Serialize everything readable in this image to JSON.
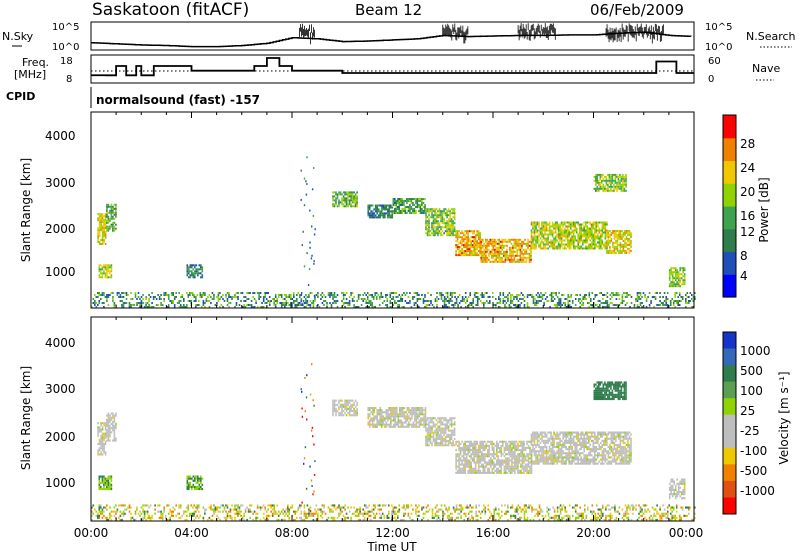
{
  "header": {
    "station": "Saskatoon (fitACF)",
    "beam": "Beam 12",
    "date": "06/Feb/2009"
  },
  "noise_panel": {
    "left_label": "N.Sky",
    "right_label": "N.Search",
    "left_ticks": [
      "10^5",
      "10^0"
    ],
    "right_ticks": [
      "10^5",
      "10^0"
    ]
  },
  "freq_panel": {
    "left_label_1": "Freq.",
    "left_label_2": "[MHz]",
    "right_label": "Nave",
    "left_ticks": [
      "18",
      "8"
    ],
    "right_ticks": [
      "60",
      "0"
    ]
  },
  "cpid": {
    "label": "CPID",
    "value": "normalsound (fast) -157"
  },
  "power_panel": {
    "ylabel": "Slant Range [km]",
    "yticks": [
      "4000",
      "3000",
      "2000",
      "1000"
    ],
    "colorbar_label": "Power [dB]",
    "colorbar_ticks": [
      "28",
      "24",
      "20",
      "16",
      "12",
      "8",
      "4"
    ]
  },
  "velocity_panel": {
    "ylabel": "Slant Range [km]",
    "yticks": [
      "4000",
      "3000",
      "2000",
      "1000"
    ],
    "colorbar_label": "Velocity [m s⁻¹]",
    "colorbar_ticks": [
      "1000",
      "500",
      "100",
      "25",
      "-25",
      "-100",
      "-500",
      "-1000"
    ]
  },
  "xaxis": {
    "label": "Time UT",
    "ticks": [
      "00:00",
      "04:00",
      "08:00",
      "12:00",
      "16:00",
      "20:00",
      "00:00"
    ]
  },
  "colors": {
    "power_scale": [
      "#0000ff",
      "#1f4fb8",
      "#2e7d4b",
      "#3fa34d",
      "#8fd400",
      "#f0c800",
      "#f08000",
      "#ff0000"
    ],
    "velocity_scale": [
      "#1533c8",
      "#3468b8",
      "#2e7d4b",
      "#5aa050",
      "#8fd400",
      "#bebebe",
      "#bebebe",
      "#f0c800",
      "#f08000",
      "#e05010",
      "#ff0000"
    ],
    "ground_scatter": "#bebebe"
  },
  "chart_data": [
    {
      "type": "line",
      "title": "Saskatoon (fitACF)  Beam 12  06/Feb/2009",
      "series": [
        {
          "name": "N.Sky",
          "x_hours": [
            0,
            1,
            2,
            3,
            4,
            5,
            6,
            7,
            8,
            9,
            10,
            11,
            12,
            13,
            14,
            15,
            16,
            17,
            18,
            19,
            20,
            21,
            22,
            23,
            24
          ],
          "values_log10": [
            1.3,
            1.1,
            0.9,
            0.8,
            0.6,
            0.6,
            0.8,
            1.2,
            2.2,
            2.0,
            1.5,
            1.6,
            1.8,
            2.0,
            2.6,
            2.4,
            2.5,
            2.6,
            2.6,
            2.7,
            2.7,
            3.0,
            3.2,
            2.6,
            2.4
          ]
        }
      ],
      "xlim": [
        0,
        24
      ],
      "ylim": [
        0,
        5
      ]
    },
    {
      "type": "line",
      "series": [
        {
          "name": "Freq. [MHz]",
          "x_hours": [
            0,
            0.6,
            1.0,
            1.4,
            1.8,
            2.0,
            2.5,
            3.0,
            4.0,
            5.0,
            6.0,
            6.5,
            7.0,
            7.5,
            8.0,
            10.0,
            12.0,
            14.0,
            16.0,
            18.0,
            20.0,
            22.0,
            22.5,
            23.3,
            24.0
          ],
          "values": [
            10.5,
            10.5,
            14.5,
            10.5,
            14.5,
            10.5,
            14.5,
            14.5,
            12.5,
            12.5,
            12.5,
            14.5,
            18,
            14.5,
            12.5,
            11.5,
            11.5,
            11.5,
            11.5,
            11.5,
            11.5,
            11.5,
            16.5,
            11.5,
            11.5
          ]
        },
        {
          "name": "Nave",
          "values": [
            30
          ]
        }
      ],
      "ylim": [
        8,
        18
      ],
      "ylim_right": [
        0,
        60
      ]
    },
    {
      "type": "heatmap",
      "title": "Power [dB]",
      "xlabel": "Time UT",
      "ylabel": "Slant Range [km]",
      "xlim": [
        0,
        24
      ],
      "ylim": [
        180,
        4600
      ],
      "zlim": [
        0,
        30
      ],
      "bands": [
        {
          "t0": 0.25,
          "t1": 0.6,
          "r0": 1600,
          "r1": 2300,
          "power": 20
        },
        {
          "t0": 0.6,
          "t1": 1.0,
          "r0": 1900,
          "r1": 2500,
          "power": 14
        },
        {
          "t0": 0.3,
          "t1": 0.8,
          "r0": 850,
          "r1": 1150,
          "power": 18
        },
        {
          "t0": 3.8,
          "t1": 4.4,
          "r0": 850,
          "r1": 1150,
          "power": 10
        },
        {
          "t0": 9.6,
          "t1": 10.6,
          "r0": 2450,
          "r1": 2800,
          "power": 14
        },
        {
          "t0": 11.0,
          "t1": 12.0,
          "r0": 2200,
          "r1": 2500,
          "power": 10
        },
        {
          "t0": 12.0,
          "t1": 13.3,
          "r0": 2300,
          "r1": 2650,
          "power": 12
        },
        {
          "t0": 13.3,
          "t1": 14.5,
          "r0": 1800,
          "r1": 2400,
          "power": 16
        },
        {
          "t0": 14.5,
          "t1": 15.5,
          "r0": 1350,
          "r1": 1900,
          "power": 22
        },
        {
          "t0": 15.5,
          "t1": 17.5,
          "r0": 1200,
          "r1": 1700,
          "power": 22
        },
        {
          "t0": 17.5,
          "t1": 20.5,
          "r0": 1500,
          "r1": 2100,
          "power": 18
        },
        {
          "t0": 20.5,
          "t1": 21.5,
          "r0": 1400,
          "r1": 1900,
          "power": 20
        },
        {
          "t0": 20.0,
          "t1": 21.3,
          "r0": 2800,
          "r1": 3200,
          "power": 16
        },
        {
          "t0": 23.0,
          "t1": 23.6,
          "r0": 650,
          "r1": 1100,
          "power": 16
        },
        {
          "t0": 0.0,
          "t1": 24.0,
          "r0": 180,
          "r1": 500,
          "power": 8
        }
      ]
    },
    {
      "type": "heatmap",
      "title": "Velocity [m s⁻¹]",
      "xlabel": "Time UT",
      "ylabel": "Slant Range [km]",
      "xlim": [
        0,
        24
      ],
      "ylim": [
        180,
        4600
      ],
      "zlim": [
        -1000,
        1000
      ],
      "bands": [
        {
          "t0": 0.25,
          "t1": 0.6,
          "r0": 1600,
          "r1": 2300,
          "velocity": 0
        },
        {
          "t0": 0.6,
          "t1": 1.0,
          "r0": 1900,
          "r1": 2500,
          "velocity": 0
        },
        {
          "t0": 0.3,
          "t1": 0.8,
          "r0": 850,
          "r1": 1150,
          "velocity": 100
        },
        {
          "t0": 3.8,
          "t1": 4.4,
          "r0": 850,
          "r1": 1150,
          "velocity": 100
        },
        {
          "t0": 9.6,
          "t1": 10.6,
          "r0": 2450,
          "r1": 2800,
          "velocity": 0
        },
        {
          "t0": 11.0,
          "t1": 13.3,
          "r0": 2200,
          "r1": 2650,
          "velocity": 0
        },
        {
          "t0": 13.3,
          "t1": 14.5,
          "r0": 1800,
          "r1": 2400,
          "velocity": 0
        },
        {
          "t0": 14.5,
          "t1": 17.5,
          "r0": 1200,
          "r1": 1900,
          "velocity": 0
        },
        {
          "t0": 17.5,
          "t1": 21.5,
          "r0": 1400,
          "r1": 2100,
          "velocity": 0
        },
        {
          "t0": 20.0,
          "t1": 21.3,
          "r0": 2800,
          "r1": 3200,
          "velocity": 150
        },
        {
          "t0": 23.0,
          "t1": 23.6,
          "r0": 650,
          "r1": 1100,
          "velocity": 0
        },
        {
          "t0": 0.0,
          "t1": 24.0,
          "r0": 180,
          "r1": 500,
          "velocity": -50
        }
      ]
    }
  ]
}
